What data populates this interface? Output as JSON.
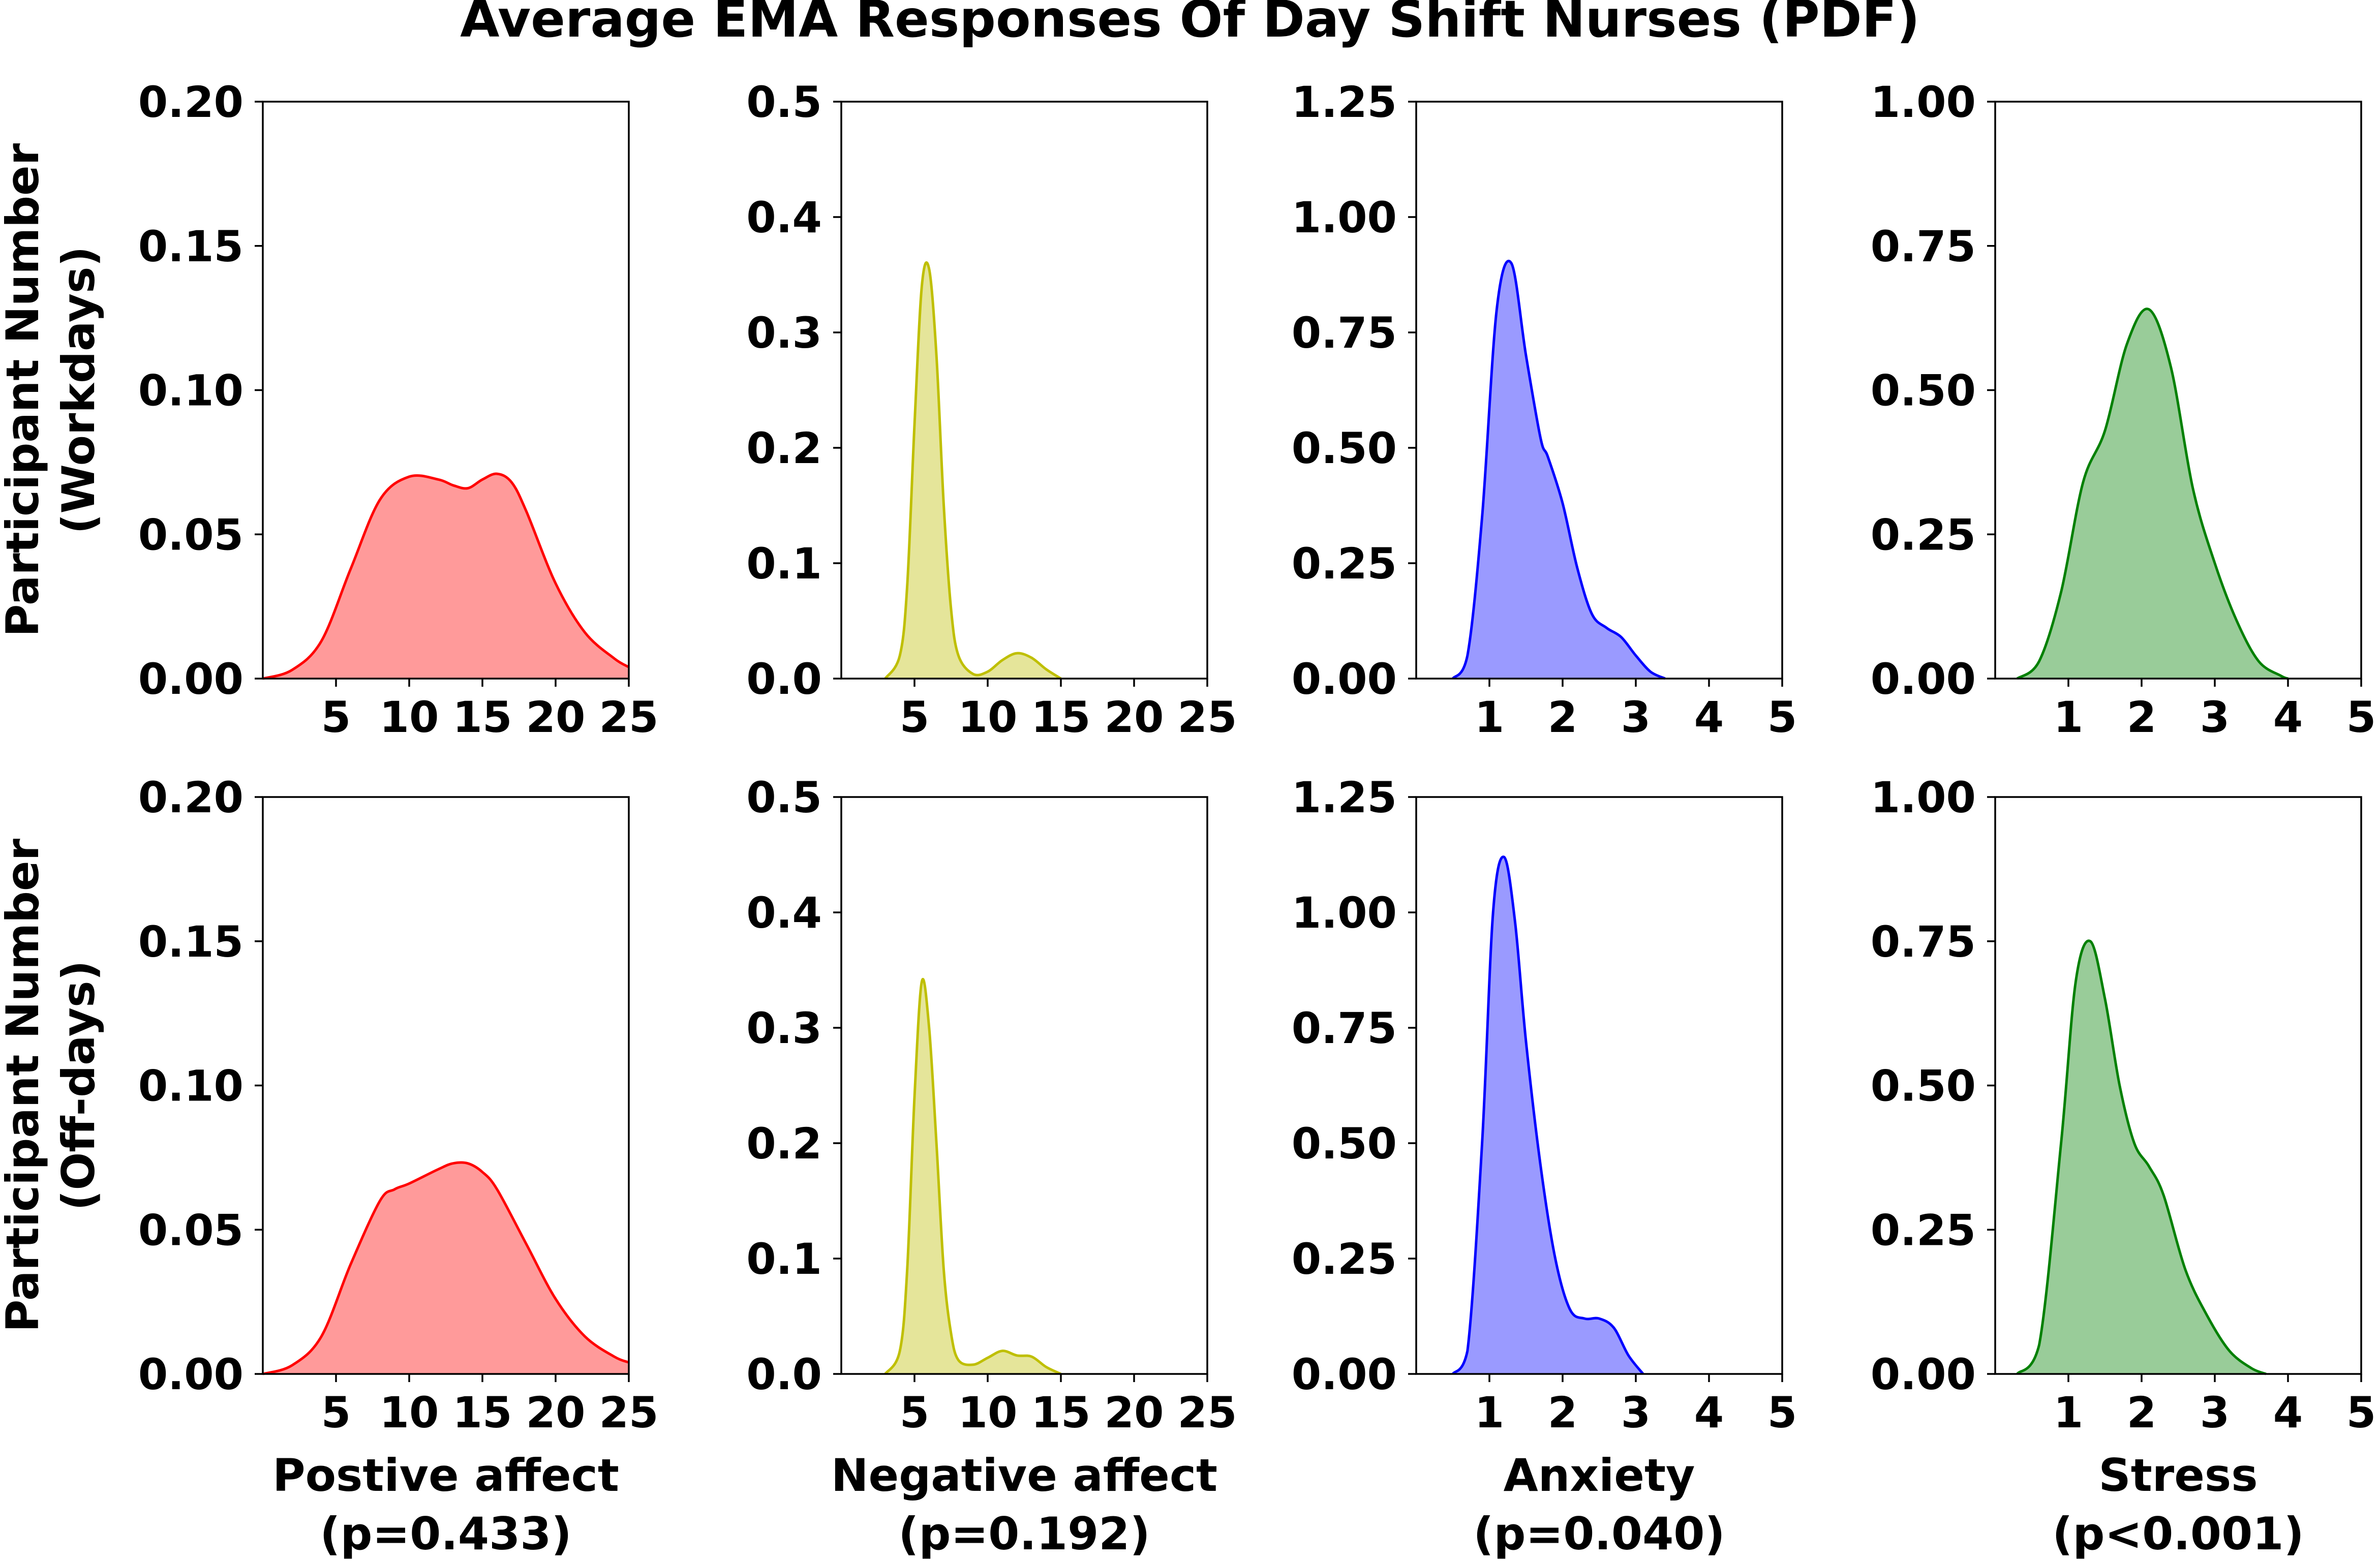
{
  "figure_title": "Average EMA Responses Of Day Shift Nurses (PDF)",
  "row_labels": [
    [
      "Participant Number",
      "(Workdays)"
    ],
    [
      "Participant Number",
      "(Off-days)"
    ]
  ],
  "column_labels": [
    [
      "Postive affect",
      "(p=0.433)"
    ],
    [
      "Negative affect",
      "(p=0.192)"
    ],
    [
      "Anxiety",
      "(p=0.040)"
    ],
    [
      "Stress",
      "(p<0.001)"
    ]
  ],
  "colors": {
    "positive_line": "#ff0000",
    "positive_fill": "#ff9a9a",
    "negative_line": "#bfbf00",
    "negative_fill": "#e5e59a",
    "anxiety_line": "#0000ff",
    "anxiety_fill": "#9a9aff",
    "stress_line": "#008000",
    "stress_fill": "#99cc99"
  },
  "chart_data": [
    {
      "type": "area",
      "row": "Workdays",
      "xlabel": "Postive affect (p=0.433)",
      "ylabel": "Participant Number (Workdays)",
      "color": "#ff0000",
      "fill": "#ff9a9a",
      "xlim": [
        0,
        25
      ],
      "ylim": [
        0,
        0.2
      ],
      "x_ticks": [
        5,
        10,
        15,
        20,
        25
      ],
      "x_tick_labels": [
        "5",
        "10",
        "15",
        "20",
        "25"
      ],
      "y_ticks": [
        0,
        0.05,
        0.1,
        0.15,
        0.2
      ],
      "y_tick_labels": [
        "0.00",
        "0.05",
        "0.10",
        "0.15",
        "0.20"
      ],
      "x": [
        0,
        2,
        4,
        6,
        8,
        10,
        12,
        13,
        14,
        15,
        16,
        17,
        18,
        20,
        22,
        24,
        25
      ],
      "y": [
        0,
        0.003,
        0.013,
        0.038,
        0.062,
        0.07,
        0.069,
        0.067,
        0.066,
        0.069,
        0.071,
        0.068,
        0.058,
        0.033,
        0.016,
        0.007,
        0.004
      ]
    },
    {
      "type": "area",
      "row": "Workdays",
      "xlabel": "Negative affect (p=0.192)",
      "ylabel": "Participant Number (Workdays)",
      "color": "#bfbf00",
      "fill": "#e5e59a",
      "xlim": [
        0,
        25
      ],
      "ylim": [
        0,
        0.5
      ],
      "x_ticks": [
        5,
        10,
        15,
        20,
        25
      ],
      "x_tick_labels": [
        "5",
        "10",
        "15",
        "20",
        "25"
      ],
      "y_ticks": [
        0,
        0.1,
        0.2,
        0.3,
        0.4,
        0.5
      ],
      "y_tick_labels": [
        "0.0",
        "0.1",
        "0.2",
        "0.3",
        "0.4",
        "0.5"
      ],
      "x": [
        3,
        4,
        4.5,
        5,
        5.5,
        6,
        6.5,
        7,
        7.5,
        8,
        9,
        10,
        11,
        12,
        13,
        14,
        15
      ],
      "y": [
        0,
        0.02,
        0.08,
        0.22,
        0.34,
        0.355,
        0.28,
        0.15,
        0.06,
        0.02,
        0.004,
        0.006,
        0.016,
        0.022,
        0.018,
        0.008,
        0
      ]
    },
    {
      "type": "area",
      "row": "Workdays",
      "xlabel": "Anxiety (p=0.040)",
      "ylabel": "Participant Number (Workdays)",
      "color": "#0000ff",
      "fill": "#9a9aff",
      "xlim": [
        0,
        5
      ],
      "ylim": [
        0,
        1.25
      ],
      "x_ticks": [
        1,
        2,
        3,
        4,
        5
      ],
      "x_tick_labels": [
        "1",
        "2",
        "3",
        "4",
        "5"
      ],
      "y_ticks": [
        0,
        0.25,
        0.5,
        0.75,
        1.0,
        1.25
      ],
      "y_tick_labels": [
        "0.00",
        "0.25",
        "0.50",
        "0.75",
        "1.00",
        "1.25"
      ],
      "x": [
        0.5,
        0.7,
        0.9,
        1.1,
        1.3,
        1.5,
        1.7,
        1.8,
        2.0,
        2.2,
        2.4,
        2.6,
        2.8,
        3.0,
        3.2,
        3.4
      ],
      "y": [
        0,
        0.05,
        0.35,
        0.8,
        0.9,
        0.7,
        0.52,
        0.48,
        0.38,
        0.24,
        0.14,
        0.11,
        0.09,
        0.05,
        0.015,
        0
      ]
    },
    {
      "type": "area",
      "row": "Workdays",
      "xlabel": "Stress (p<0.001)",
      "ylabel": "Participant Number (Workdays)",
      "color": "#008000",
      "fill": "#99cc99",
      "xlim": [
        0,
        5
      ],
      "ylim": [
        0,
        1.0
      ],
      "x_ticks": [
        1,
        2,
        3,
        4,
        5
      ],
      "x_tick_labels": [
        "1",
        "2",
        "3",
        "4",
        "5"
      ],
      "y_ticks": [
        0,
        0.25,
        0.5,
        0.75,
        1.0
      ],
      "y_tick_labels": [
        "0.00",
        "0.25",
        "0.50",
        "0.75",
        "1.00"
      ],
      "x": [
        0.3,
        0.6,
        0.9,
        1.2,
        1.5,
        1.8,
        2.1,
        2.4,
        2.7,
        3.0,
        3.3,
        3.6,
        3.9,
        4.0
      ],
      "y": [
        0,
        0.03,
        0.15,
        0.34,
        0.43,
        0.58,
        0.64,
        0.54,
        0.33,
        0.2,
        0.1,
        0.03,
        0.005,
        0
      ]
    },
    {
      "type": "area",
      "row": "Off-days",
      "xlabel": "Postive affect (p=0.433)",
      "ylabel": "Participant Number (Off-days)",
      "color": "#ff0000",
      "fill": "#ff9a9a",
      "xlim": [
        0,
        25
      ],
      "ylim": [
        0,
        0.2
      ],
      "x_ticks": [
        5,
        10,
        15,
        20,
        25
      ],
      "x_tick_labels": [
        "5",
        "10",
        "15",
        "20",
        "25"
      ],
      "y_ticks": [
        0,
        0.05,
        0.1,
        0.15,
        0.2
      ],
      "y_tick_labels": [
        "0.00",
        "0.05",
        "0.10",
        "0.15",
        "0.20"
      ],
      "x": [
        0,
        2,
        4,
        6,
        8,
        9,
        10,
        12,
        13,
        14,
        15,
        16,
        18,
        20,
        22,
        24,
        25
      ],
      "y": [
        0,
        0.003,
        0.013,
        0.038,
        0.06,
        0.064,
        0.066,
        0.071,
        0.073,
        0.073,
        0.07,
        0.064,
        0.045,
        0.026,
        0.013,
        0.006,
        0.004
      ]
    },
    {
      "type": "area",
      "row": "Off-days",
      "xlabel": "Negative affect (p=0.192)",
      "ylabel": "Participant Number (Off-days)",
      "color": "#bfbf00",
      "fill": "#e5e59a",
      "xlim": [
        0,
        25
      ],
      "ylim": [
        0,
        0.5
      ],
      "x_ticks": [
        5,
        10,
        15,
        20,
        25
      ],
      "x_tick_labels": [
        "5",
        "10",
        "15",
        "20",
        "25"
      ],
      "y_ticks": [
        0,
        0.1,
        0.2,
        0.3,
        0.4,
        0.5
      ],
      "y_tick_labels": [
        "0.0",
        "0.1",
        "0.2",
        "0.3",
        "0.4",
        "0.5"
      ],
      "x": [
        3,
        4,
        4.5,
        5,
        5.5,
        6,
        6.5,
        7,
        7.5,
        8,
        9,
        10,
        11,
        12,
        13,
        14,
        15
      ],
      "y": [
        0,
        0.02,
        0.09,
        0.24,
        0.34,
        0.3,
        0.2,
        0.09,
        0.035,
        0.012,
        0.008,
        0.014,
        0.02,
        0.016,
        0.015,
        0.006,
        0
      ]
    },
    {
      "type": "area",
      "row": "Off-days",
      "xlabel": "Anxiety (p=0.040)",
      "ylabel": "Participant Number (Off-days)",
      "color": "#0000ff",
      "fill": "#9a9aff",
      "xlim": [
        0,
        5
      ],
      "ylim": [
        0,
        1.25
      ],
      "x_ticks": [
        1,
        2,
        3,
        4,
        5
      ],
      "x_tick_labels": [
        "1",
        "2",
        "3",
        "4",
        "5"
      ],
      "y_ticks": [
        0,
        0.25,
        0.5,
        0.75,
        1.0,
        1.25
      ],
      "y_tick_labels": [
        "0.00",
        "0.25",
        "0.50",
        "0.75",
        "1.00",
        "1.25"
      ],
      "x": [
        0.5,
        0.7,
        0.9,
        1.05,
        1.2,
        1.35,
        1.5,
        1.7,
        1.9,
        2.1,
        2.3,
        2.5,
        2.7,
        2.9,
        3.1
      ],
      "y": [
        0,
        0.05,
        0.5,
        1.0,
        1.12,
        0.98,
        0.72,
        0.45,
        0.25,
        0.14,
        0.12,
        0.12,
        0.1,
        0.04,
        0
      ]
    },
    {
      "type": "area",
      "row": "Off-days",
      "xlabel": "Stress (p<0.001)",
      "ylabel": "Participant Number (Off-days)",
      "color": "#008000",
      "fill": "#99cc99",
      "xlim": [
        0,
        5
      ],
      "ylim": [
        0,
        1.0
      ],
      "x_ticks": [
        1,
        2,
        3,
        4,
        5
      ],
      "x_tick_labels": [
        "1",
        "2",
        "3",
        "4",
        "5"
      ],
      "y_ticks": [
        0,
        0.25,
        0.5,
        0.75,
        1.0
      ],
      "y_tick_labels": [
        "0.00",
        "0.25",
        "0.50",
        "0.75",
        "1.00"
      ],
      "x": [
        0.3,
        0.6,
        0.9,
        1.1,
        1.3,
        1.5,
        1.7,
        1.9,
        2.1,
        2.3,
        2.6,
        2.9,
        3.2,
        3.5,
        3.7
      ],
      "y": [
        0,
        0.05,
        0.4,
        0.68,
        0.75,
        0.65,
        0.5,
        0.4,
        0.36,
        0.31,
        0.18,
        0.1,
        0.04,
        0.01,
        0
      ]
    }
  ]
}
